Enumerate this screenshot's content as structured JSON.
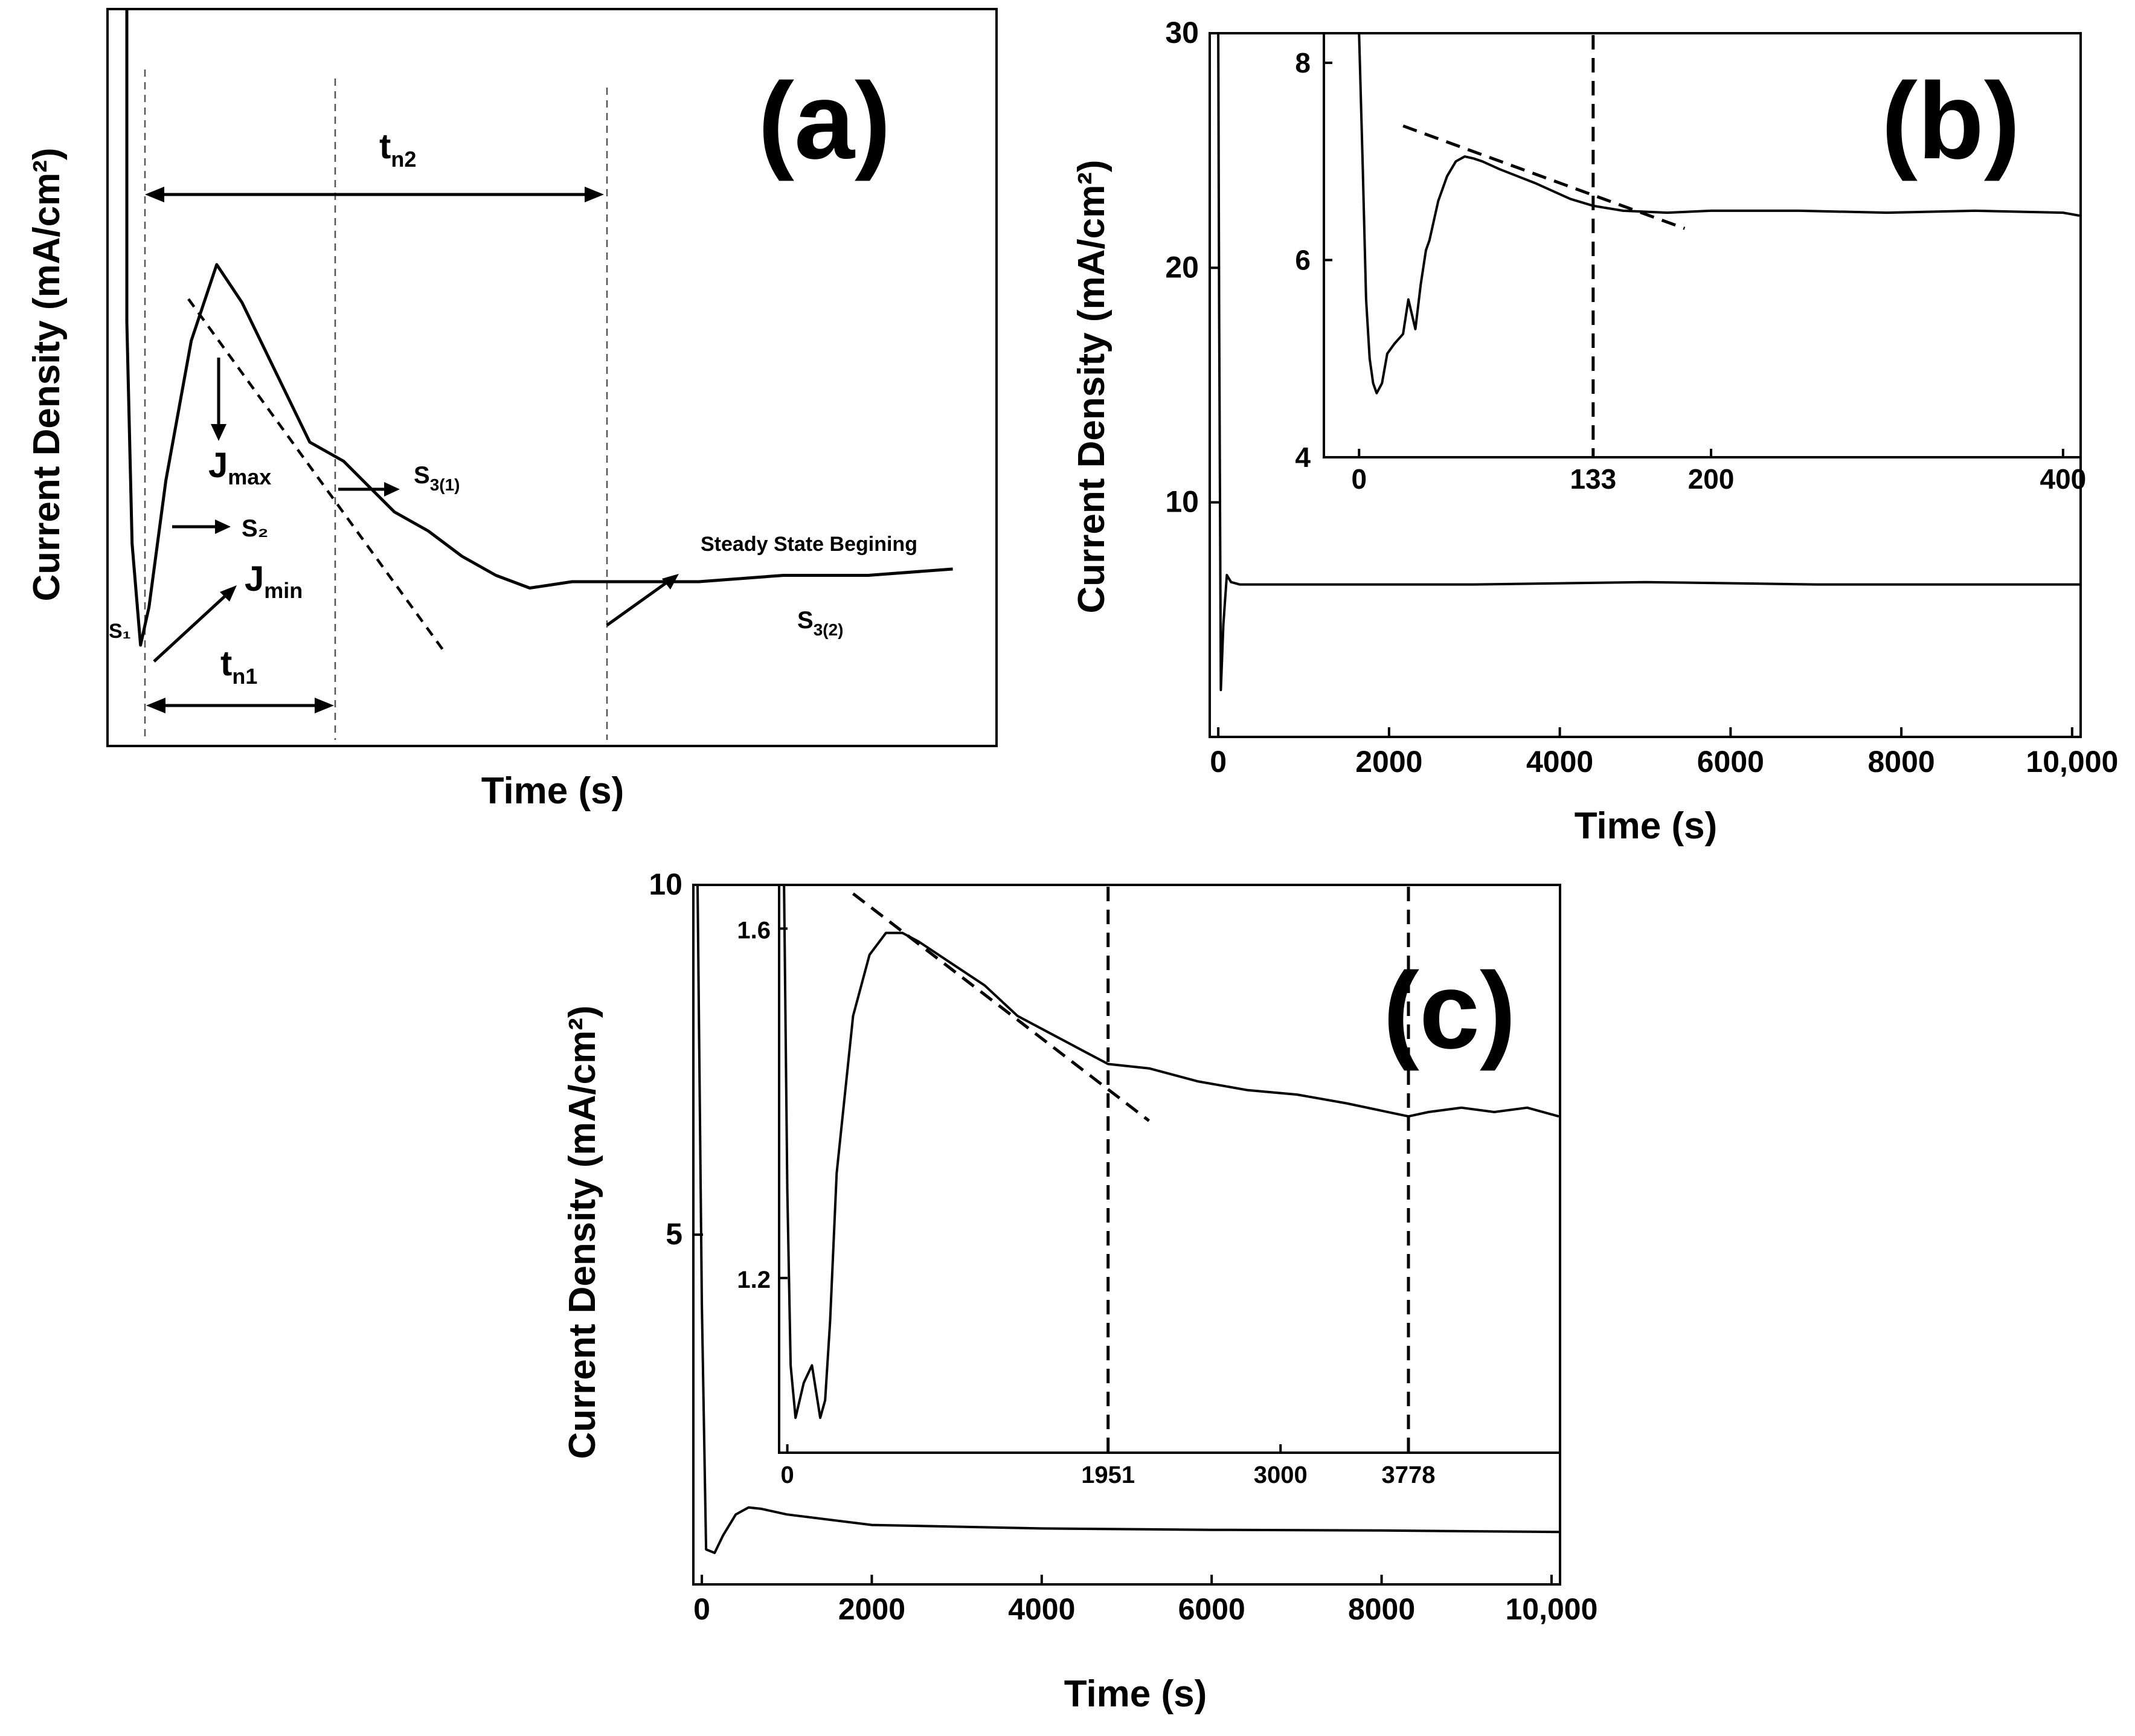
{
  "chart_data": [
    {
      "id": "a",
      "type": "line",
      "panel_label": "(a)",
      "title": "",
      "xlabel": "Time (s)",
      "ylabel": "Current Density (mA/cm²)",
      "axes_ticks": "none (schematic)",
      "annotations": {
        "tn2": "t",
        "tn2_sub": "n2",
        "tn1": "t",
        "tn1_sub": "n1",
        "jmax": "J",
        "jmax_sub": "max",
        "jmin": "J",
        "jmin_sub": "min",
        "s1": "S₁",
        "s2": "S₂",
        "s31": "S",
        "s31_sub": "3(1)",
        "steady": "Steady State Begining",
        "s32": "S",
        "s32_sub": "3(2)"
      },
      "series": [
        {
          "name": "schematic transient",
          "x": [
            0.0,
            0.01,
            0.02,
            0.03,
            0.04,
            0.05,
            0.07,
            0.1,
            0.13,
            0.16,
            0.2,
            0.24,
            0.28,
            0.31,
            0.34,
            0.38,
            0.42,
            0.46,
            0.5,
            0.55,
            0.6,
            0.7,
            0.8,
            0.9,
            1.0
          ],
          "y": [
            1.25,
            0.9,
            0.55,
            0.2,
            0.04,
            0.1,
            0.3,
            0.52,
            0.64,
            0.58,
            0.47,
            0.36,
            0.33,
            0.29,
            0.25,
            0.22,
            0.18,
            0.15,
            0.13,
            0.14,
            0.14,
            0.14,
            0.15,
            0.15,
            0.16
          ]
        }
      ]
    },
    {
      "id": "b",
      "type": "line",
      "panel_label": "(b)",
      "title": "",
      "xlabel": "Time (s)",
      "ylabel": "Current Density (mA/cm²)",
      "xlim": [
        -100,
        10100
      ],
      "ylim": [
        0,
        30
      ],
      "x_ticks": [
        "0",
        "2000",
        "4000",
        "6000",
        "8000",
        "10,000"
      ],
      "x_tick_values": [
        0,
        2000,
        4000,
        6000,
        8000,
        10000
      ],
      "y_ticks": [
        "10",
        "20",
        "30"
      ],
      "y_tick_values": [
        10,
        20,
        30
      ],
      "series": [
        {
          "name": "main",
          "x": [
            0,
            10,
            30,
            60,
            100,
            150,
            250,
            400,
            1000,
            3000,
            5000,
            7000,
            9000,
            10100
          ],
          "y": [
            30,
            18,
            2,
            4.8,
            6.9,
            6.6,
            6.5,
            6.5,
            6.5,
            6.5,
            6.6,
            6.5,
            6.5,
            6.5
          ]
        }
      ],
      "inset": {
        "xlim": [
          -20,
          410
        ],
        "ylim": [
          4,
          8.3
        ],
        "x_ticks": [
          "0",
          "133",
          "200",
          "400"
        ],
        "x_tick_values": [
          0,
          133,
          200,
          400
        ],
        "y_ticks": [
          "4",
          "6",
          "8"
        ],
        "y_tick_values": [
          4,
          6,
          8
        ],
        "dashed_x": 133,
        "tangent": {
          "x": [
            25,
            185
          ],
          "y": [
            7.36,
            6.32
          ]
        },
        "series": [
          {
            "name": "inset",
            "x": [
              0,
              2,
              4,
              6,
              8,
              10,
              13,
              16,
              20,
              25,
              28,
              32,
              35,
              38,
              40,
              45,
              50,
              55,
              60,
              65,
              70,
              80,
              90,
              100,
              110,
              120,
              133,
              150,
              175,
              200,
              250,
              300,
              350,
              400,
              410
            ],
            "y": [
              8.3,
              7.0,
              5.6,
              5.0,
              4.75,
              4.65,
              4.75,
              5.05,
              5.15,
              5.25,
              5.6,
              5.3,
              5.75,
              6.1,
              6.2,
              6.6,
              6.85,
              7.0,
              7.05,
              7.03,
              7.0,
              6.92,
              6.85,
              6.78,
              6.7,
              6.62,
              6.55,
              6.5,
              6.48,
              6.5,
              6.5,
              6.48,
              6.5,
              6.48,
              6.45
            ]
          }
        ]
      }
    },
    {
      "id": "c",
      "type": "line",
      "panel_label": "(c)",
      "title": "",
      "xlabel": "Time (s)",
      "ylabel": "Current Density (mA/cm²)",
      "xlim": [
        -100,
        10100
      ],
      "ylim": [
        0,
        10
      ],
      "x_ticks": [
        "0",
        "2000",
        "4000",
        "6000",
        "8000",
        "10,000"
      ],
      "x_tick_values": [
        0,
        2000,
        4000,
        6000,
        8000,
        10000
      ],
      "y_ticks": [
        "5",
        "10"
      ],
      "y_tick_values": [
        5,
        10
      ],
      "series": [
        {
          "name": "main",
          "x": [
            -50,
            0,
            50,
            150,
            250,
            400,
            550,
            700,
            1000,
            2000,
            4000,
            6000,
            8000,
            10100
          ],
          "y": [
            10,
            4,
            0.5,
            0.45,
            0.7,
            1.0,
            1.1,
            1.08,
            1.0,
            0.85,
            0.8,
            0.78,
            0.77,
            0.75
          ]
        }
      ],
      "inset": {
        "xlim": [
          -50,
          4700
        ],
        "ylim": [
          1.0,
          1.65
        ],
        "x_ticks": [
          "0",
          "1951",
          "3000",
          "3778"
        ],
        "x_tick_values": [
          0,
          1951,
          3000,
          3778
        ],
        "y_ticks": [
          "1.2",
          "1.6"
        ],
        "y_tick_values": [
          1.2,
          1.6
        ],
        "dashed_x": [
          1951,
          3778
        ],
        "tangent": {
          "x": [
            400,
            2200
          ],
          "y": [
            1.64,
            1.38
          ]
        },
        "series": [
          {
            "name": "inset",
            "x": [
              -20,
              0,
              20,
              50,
              100,
              150,
              200,
              230,
              260,
              300,
              400,
              500,
              600,
              700,
              800,
              1000,
              1200,
              1400,
              1600,
              1800,
              1951,
              2200,
              2500,
              2800,
              3100,
              3400,
              3778,
              3900,
              4100,
              4300,
              4500,
              4700
            ],
            "y": [
              1.65,
              1.3,
              1.1,
              1.04,
              1.08,
              1.1,
              1.04,
              1.06,
              1.15,
              1.32,
              1.5,
              1.57,
              1.595,
              1.595,
              1.585,
              1.56,
              1.535,
              1.5,
              1.48,
              1.46,
              1.445,
              1.44,
              1.425,
              1.415,
              1.41,
              1.4,
              1.385,
              1.39,
              1.395,
              1.39,
              1.395,
              1.385
            ]
          }
        ]
      }
    }
  ]
}
